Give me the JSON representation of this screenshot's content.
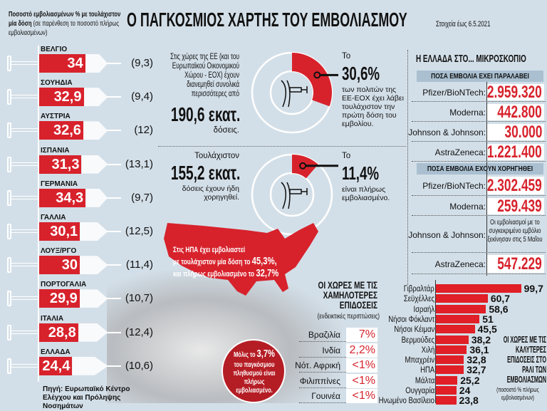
{
  "title": "Ο ΠΑΓΚΟΣΜΙΟΣ ΧΑΡΤΗΣ ΤΟΥ ΕΜΒΟΛΙΑΣΜΟΥ",
  "as_of": "Στοιχεία έως 6.5.2021",
  "colors": {
    "accent": "#d7222c",
    "background": "#d3dfe8",
    "panel_header": "#aac0d1"
  },
  "chart_data": [
    {
      "type": "bar",
      "title": "Ποσοστό εμβολιασμένων % με τουλάχιστον μία δόση",
      "subtitle": "(σε παρένθεση το ποσοστό πλήρως εμβολιασμένων)",
      "categories": [
        "ΒΕΛΓΙΟ",
        "ΣΟΥΗΔΙΑ",
        "ΑΥΣΤΡΙΑ",
        "ΙΣΠΑΝΙΑ",
        "ΓΕΡΜΑΝΙΑ",
        "ΓΑΛΛΙΑ",
        "ΛΟΥΞ/ΡΓΟ",
        "ΠΟΡΤΟΓΑΛΙΑ",
        "ΙΤΑΛΙΑ",
        "ΕΛΛΑΔΑ"
      ],
      "values": [
        "34",
        "32,9",
        "32,6",
        "31,3",
        "34,3",
        "30,1",
        "30",
        "29,9",
        "28,8",
        "24,4"
      ],
      "fully": [
        "(9,3)",
        "(9,4)",
        "(12)",
        "(13,1)",
        "(9,7)",
        "(12,5)",
        "(11,4)",
        "(10,7)",
        "(12,4)",
        "(10,6)"
      ],
      "numeric": [
        34,
        32.9,
        32.6,
        31.3,
        34.3,
        30.1,
        30,
        29.9,
        28.8,
        24.4
      ]
    },
    {
      "type": "pie",
      "label": "30,6%",
      "value": 30.6
    },
    {
      "type": "pie",
      "label": "11,4%",
      "value": 11.4
    },
    {
      "type": "bar",
      "title": "ΟΙ ΧΩΡΕΣ ΜΕ ΤΙΣ ΚΑΛΥΤΕΡΕΣ ΕΠΙΔΟΣΕΙΣ ΣΤΟ ΡΑΛΙ ΤΩΝ ΕΜΒΟΛΙΑΣΜΩΝ",
      "subtitle": "(ποσοστό % πλήρως εμβολιασμένων)",
      "categories": [
        "Γιβραλτάρ",
        "Σεϋχέλλες",
        "Ισραήλ",
        "Νήσοι Φόκλαντ",
        "Νήσοι Κέιμαν",
        "Βερμούδες",
        "Χιλή",
        "Μπαχρέιν",
        "ΗΠΑ",
        "Μάλτα",
        "Ουγγαρία",
        "Ηνωμένο Βασίλειο"
      ],
      "values": [
        "99,7",
        "60,7",
        "58,6",
        "51",
        "45,5",
        "38,2",
        "36,1",
        "32,8",
        "32,7",
        "25,2",
        "24",
        "23,8"
      ],
      "numeric": [
        99.7,
        60.7,
        58.6,
        51,
        45.5,
        38.2,
        36.1,
        32.8,
        32.7,
        25.2,
        24,
        23.8
      ]
    }
  ],
  "left_heading": {
    "bold": "Ποσοστό εμβολιασμένων % με τουλάχιστον μία δόση",
    "normal": "(σε παρένθεση το ποσοστό πλήρως εμβολιασμένων)"
  },
  "source": "Πηγή: Ευρωπαϊκό Κέντρο Ελέγχου και Πρόληψης Νοσημάτων",
  "eu": {
    "text1": "Στις χώρες της ΕΕ (και του Ευρωπαϊκού Οικονομικού Χώρου - ΕΟΧ) έχουν διανεμηθεί συνολικά περισσότερες από",
    "big1": "190,6 εκατ.",
    "after1": "δόσεις.",
    "to1": "Το",
    "pct1": "30,6%",
    "pct1_text": "των πολιτών της ΕΕ-ΕΟΧ έχει λάβει τουλάχιστον την πρώτη δόση του εμβολίου.",
    "text2": "Τουλάχιστον",
    "big2": "155,2 εκατ.",
    "after2": "δόσεις έχουν ήδη χορηγηθεί.",
    "to2": "Το",
    "pct2": "11,4%",
    "pct2_text": "είναι πλήρως εμβολιασμένο."
  },
  "usa": {
    "line1": "Στις ΗΠΑ έχει εμβολιαστεί",
    "line2a": "με τουλάχιστον μία δόση το ",
    "line2b": "45,3%,",
    "line3a": "και πλήρως εμβολιασμένο το ",
    "line3b": "32,7%"
  },
  "world": {
    "a": "Μόλις το ",
    "b": "3,7%",
    "c": "του παγκόσμιου πληθυσμού είναι πλήρως εμβολιασμένο."
  },
  "greece": {
    "title": "Η ΕΛΛΑΔΑ ΣΤΟ... ΜΙΚΡΟΣΚΟΠΙΟ",
    "received_header": "ΠΟΣΑ ΕΜΒΟΛΙΑ ΕΧΕΙ ΠΑΡΑΛΑΒΕΙ",
    "received": [
      {
        "label": "Pfizer/BioNTech:",
        "value": "2.959.320"
      },
      {
        "label": "Moderna:",
        "value": "442.800"
      },
      {
        "label": "Johnson & Johnson:",
        "value": "30.000"
      },
      {
        "label": "AstraZeneca:",
        "value": "1.221.400"
      }
    ],
    "given_header": "ΠΟΣΑ ΕΜΒΟΛΙΑ ΕΧΟΥΝ ΧΟΡΗΓΗΘΕΙ",
    "given": [
      {
        "label": "Pfizer/BioNTech:",
        "value": "2.302.459"
      },
      {
        "label": "Moderna:",
        "value": "259.439"
      },
      {
        "label": "Johnson & Johnson:",
        "note": "Οι εμβολιασμοί με το συγκεκριμένο εμβόλιο ξεκίνησαν στις 5 Μαΐου"
      },
      {
        "label": "AstraZeneca:",
        "value": "547.229"
      }
    ]
  },
  "lowest": {
    "title": "ΟΙ ΧΩΡΕΣ ΜΕ ΤΙΣ ΧΑΜΗΛΟΤΕΡΕΣ ΕΠΙΔΟΣΕΙΣ",
    "subtitle": "(ενδεικτικές περιπτώσεις)",
    "rows": [
      {
        "label": "Βραζιλία",
        "value": "7%"
      },
      {
        "label": "Ινδία",
        "value": "2,2%"
      },
      {
        "label": "Νότ. Αφρική",
        "value": "<1%"
      },
      {
        "label": "Φιλιππίνες",
        "value": "<1%"
      },
      {
        "label": "Γουινέα",
        "value": "<1%"
      }
    ]
  }
}
